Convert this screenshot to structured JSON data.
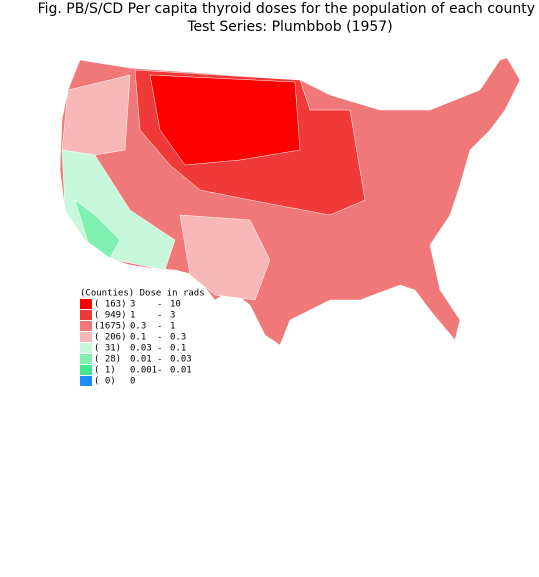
{
  "header": {
    "title": "Fig. PB/S/CD   Per capita thyroid doses for the population of each county",
    "subtitle": "Test Series:  Plumbbob (1957)"
  },
  "legend": {
    "heading": "(Counties) Dose in rads",
    "rows": [
      {
        "count": "( 163)",
        "low": "3",
        "high": "10",
        "color": "#ff0000"
      },
      {
        "count": "( 949)",
        "low": "1",
        "high": "3",
        "color": "#f03a3a"
      },
      {
        "count": "(1675)",
        "low": "0.3",
        "high": "1",
        "color": "#f07878"
      },
      {
        "count": "( 206)",
        "low": "0.1",
        "high": "0.3",
        "color": "#f8b8b8"
      },
      {
        "count": "(  31)",
        "low": "0.03",
        "high": "0.1",
        "color": "#c8f8dc"
      },
      {
        "count": "(  28)",
        "low": "0.01",
        "high": "0.03",
        "color": "#80f0b0"
      },
      {
        "count": "(   1)",
        "low": "0.001",
        "high": "0.01",
        "color": "#40e890"
      },
      {
        "count": "(   0)",
        "low": "0",
        "color": "#1e8cff"
      }
    ],
    "dash": "-"
  }
}
